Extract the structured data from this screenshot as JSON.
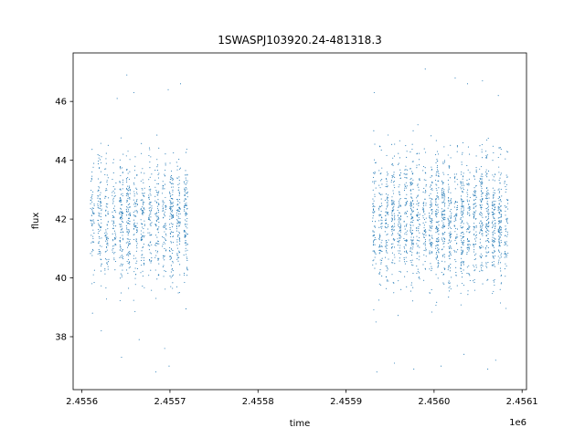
{
  "chart_data": {
    "type": "scatter",
    "title": "1SWASPJ103920.24-481318.3",
    "xlabel": "time",
    "ylabel": "flux",
    "x_offset_label": "1e6",
    "xlim": [
      2.45559,
      2.456105
    ],
    "ylim": [
      36.2,
      47.65
    ],
    "x_ticks": [
      {
        "value": 2.4556,
        "label": "2.4556"
      },
      {
        "value": 2.4557,
        "label": "2.4557"
      },
      {
        "value": 2.4558,
        "label": "2.4558"
      },
      {
        "value": 2.4559,
        "label": "2.4559"
      },
      {
        "value": 2.456,
        "label": "2.4560"
      },
      {
        "value": 2.4561,
        "label": "2.4561"
      }
    ],
    "y_ticks": [
      {
        "value": 38,
        "label": "38"
      },
      {
        "value": 40,
        "label": "40"
      },
      {
        "value": 42,
        "label": "42"
      },
      {
        "value": 44,
        "label": "44"
      },
      {
        "value": 46,
        "label": "46"
      }
    ],
    "grid": false,
    "marker_color": "#1f77b4",
    "clusters": [
      {
        "x_start": 2.455612,
        "x_end": 2.455718,
        "y_center": 42.0,
        "y_spread": 1.25,
        "nights": 14
      },
      {
        "x_start": 2.455932,
        "x_end": 2.456082,
        "y_center": 42.0,
        "y_spread": 1.3,
        "nights": 22
      }
    ],
    "outliers": [
      {
        "x": 2.45564,
        "y": 46.1
      },
      {
        "x": 2.455651,
        "y": 46.9
      },
      {
        "x": 2.455659,
        "y": 46.3
      },
      {
        "x": 2.455698,
        "y": 46.4
      },
      {
        "x": 2.455612,
        "y": 38.8
      },
      {
        "x": 2.455622,
        "y": 38.2
      },
      {
        "x": 2.455645,
        "y": 37.3
      },
      {
        "x": 2.455665,
        "y": 37.9
      },
      {
        "x": 2.455684,
        "y": 36.8
      },
      {
        "x": 2.455699,
        "y": 37.0
      },
      {
        "x": 2.455694,
        "y": 37.6
      },
      {
        "x": 2.455712,
        "y": 46.6
      },
      {
        "x": 2.455932,
        "y": 46.3
      },
      {
        "x": 2.455934,
        "y": 38.5
      },
      {
        "x": 2.455935,
        "y": 36.8
      },
      {
        "x": 2.455955,
        "y": 37.1
      },
      {
        "x": 2.455977,
        "y": 36.9
      },
      {
        "x": 2.45599,
        "y": 47.1
      },
      {
        "x": 2.456008,
        "y": 37.0
      },
      {
        "x": 2.456024,
        "y": 46.8
      },
      {
        "x": 2.456038,
        "y": 46.6
      },
      {
        "x": 2.456055,
        "y": 46.7
      },
      {
        "x": 2.456061,
        "y": 36.9
      },
      {
        "x": 2.45607,
        "y": 37.2
      },
      {
        "x": 2.456034,
        "y": 37.4
      },
      {
        "x": 2.456073,
        "y": 46.2
      }
    ]
  }
}
